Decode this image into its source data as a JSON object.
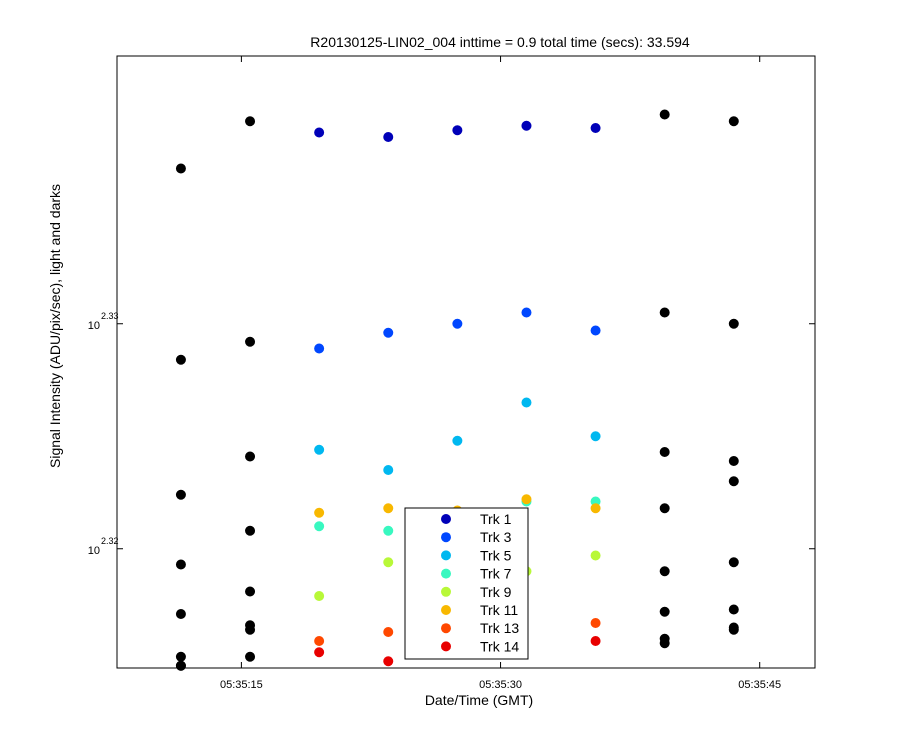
{
  "chart_data": {
    "type": "scatter",
    "title": "R20130125-LIN02_004 inttime = 0.9 total time (secs): 33.594",
    "xlabel": "Date/Time (GMT)",
    "ylabel": "Signal Intensity (ADU/pix/sec), light and darks",
    "y_scale": "log",
    "grid": false,
    "legend_position": "bottom-center",
    "x_ticks": [
      "05:35:15",
      "05:35:30",
      "05:35:45"
    ],
    "x_tick_seconds": [
      15,
      30,
      45
    ],
    "x_range_seconds": [
      7.8,
      48.2
    ],
    "y_ticks": [
      {
        "base": "10",
        "exponent": "2.33",
        "value": 2.33
      },
      {
        "base": "10",
        "exponent": "2.32",
        "value": 2.32
      }
    ],
    "y_range_log10": [
      2.3147,
      2.3419
    ],
    "x_seconds": [
      11.5,
      15.5,
      19.5,
      23.5,
      27.5,
      31.5,
      35.5,
      39.5,
      43.5
    ],
    "series": [
      {
        "name": "Trk 1",
        "color": "#0000b8",
        "x_idx": [
          2,
          3,
          4,
          5,
          6
        ],
        "y_log10": [
          2.3385,
          2.3383,
          2.3386,
          2.3388,
          2.3387
        ]
      },
      {
        "name": "Trk 3",
        "color": "#0047ff",
        "x_idx": [
          2,
          3,
          4,
          5,
          6
        ],
        "y_log10": [
          2.3289,
          2.3296,
          2.33,
          2.3305,
          2.3297
        ]
      },
      {
        "name": "Trk 5",
        "color": "#00b8f0",
        "x_idx": [
          2,
          3,
          4,
          5,
          6
        ],
        "y_log10": [
          2.3244,
          2.3235,
          2.3248,
          2.3265,
          2.325
        ]
      },
      {
        "name": "Trk 7",
        "color": "#38f8c0",
        "x_idx": [
          2,
          3,
          4,
          5,
          6
        ],
        "y_log10": [
          2.321,
          2.3208,
          2.3213,
          2.3221,
          2.3221
        ]
      },
      {
        "name": "Trk 9",
        "color": "#b8f838",
        "x_idx": [
          2,
          3,
          4,
          5,
          6
        ],
        "y_log10": [
          2.3179,
          2.3194,
          2.319,
          2.319,
          2.3197
        ]
      },
      {
        "name": "Trk 11",
        "color": "#f8b800",
        "x_idx": [
          2,
          3,
          4,
          5,
          6
        ],
        "y_log10": [
          2.3216,
          2.3218,
          2.3217,
          2.3222,
          2.3218
        ]
      },
      {
        "name": "Trk 13",
        "color": "#ff4800",
        "x_idx": [
          2,
          3,
          6
        ],
        "y_log10": [
          2.3159,
          2.3163,
          2.3167
        ]
      },
      {
        "name": "Trk 14",
        "color": "#e80000",
        "x_idx": [
          2,
          3,
          6
        ],
        "y_log10": [
          2.3154,
          2.315,
          2.3159
        ]
      }
    ],
    "darks": {
      "color": "#000000",
      "x_idx": [
        0,
        0,
        0,
        0,
        0,
        0,
        0,
        0,
        1,
        1,
        1,
        1,
        1,
        1,
        1,
        1,
        7,
        7,
        7,
        7,
        7,
        7,
        7,
        7,
        8,
        8,
        8,
        8,
        8,
        8,
        8,
        8
      ],
      "y_log10": [
        2.3369,
        2.3284,
        2.3224,
        2.3193,
        2.3171,
        2.3148,
        2.3152,
        2.3148,
        2.339,
        2.3292,
        2.3241,
        2.3208,
        2.3181,
        2.3166,
        2.3164,
        2.3152,
        2.3393,
        2.3305,
        2.3243,
        2.3218,
        2.319,
        2.3172,
        2.316,
        2.3158,
        2.339,
        2.33,
        2.3239,
        2.323,
        2.3194,
        2.3173,
        2.3165,
        2.3164
      ]
    }
  }
}
